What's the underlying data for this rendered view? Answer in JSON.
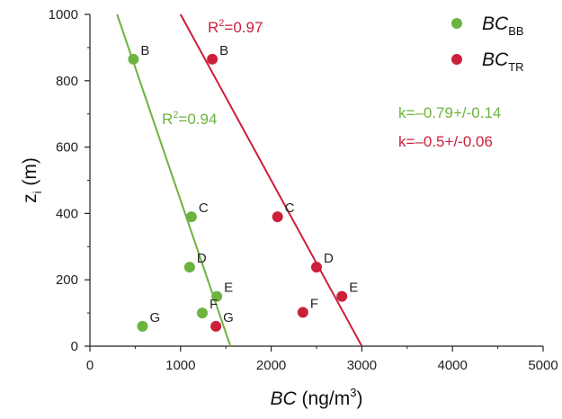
{
  "chart_data": {
    "type": "scatter",
    "xlabel": {
      "main": "BC",
      "rest": " (ng/m",
      "sup": "3",
      "close": ")"
    },
    "ylabel": {
      "main": "z",
      "sub": "i",
      "rest": " (m)"
    },
    "xlim": [
      0,
      5000
    ],
    "ylim": [
      0,
      1000
    ],
    "x_ticks": [
      "0",
      "1000",
      "2000",
      "3000",
      "4000",
      "5000"
    ],
    "y_ticks": [
      "0",
      "200",
      "400",
      "600",
      "800",
      "1000"
    ],
    "grid": false,
    "legend_placement": "top-right",
    "series": [
      {
        "name": "BC",
        "name_sub": "BB",
        "color": "#6db33f",
        "points": [
          {
            "x": 480,
            "y": 865,
            "label": "B"
          },
          {
            "x": 1120,
            "y": 390,
            "label": "C"
          },
          {
            "x": 1100,
            "y": 238,
            "label": "D"
          },
          {
            "x": 1400,
            "y": 150,
            "label": "E"
          },
          {
            "x": 1240,
            "y": 100,
            "label": "F"
          },
          {
            "x": 580,
            "y": 60,
            "label": "G"
          }
        ],
        "fit": {
          "x1": 300,
          "y1": 1000,
          "x2": 1550,
          "y2": 0
        },
        "r2": {
          "prefix": "R",
          "sup": "2",
          "value": "=0.94"
        },
        "k": "k=–0.79+/-0.14"
      },
      {
        "name": "BC",
        "name_sub": "TR",
        "color": "#cc1f3a",
        "points": [
          {
            "x": 1350,
            "y": 865,
            "label": "B"
          },
          {
            "x": 2070,
            "y": 390,
            "label": "C"
          },
          {
            "x": 2500,
            "y": 238,
            "label": "D"
          },
          {
            "x": 2780,
            "y": 150,
            "label": "E"
          },
          {
            "x": 2350,
            "y": 102,
            "label": "F"
          },
          {
            "x": 1390,
            "y": 60,
            "label": "G"
          }
        ],
        "fit": {
          "x1": 1000,
          "y1": 1000,
          "x2": 3000,
          "y2": 0
        },
        "r2": {
          "prefix": "R",
          "sup": "2",
          "value": "=0.97"
        },
        "k": "k=–0.5+/-0.06"
      }
    ]
  }
}
